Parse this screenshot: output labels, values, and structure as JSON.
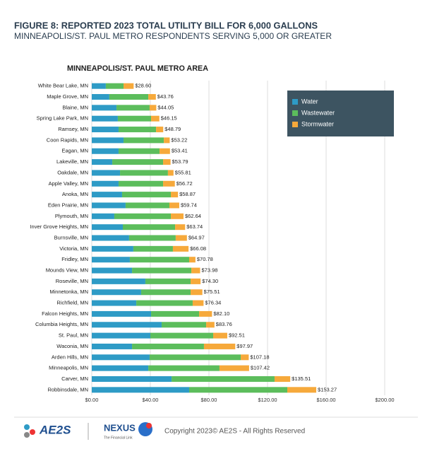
{
  "header": {
    "title": "FIGURE 8: REPORTED 2023 TOTAL UTILITY BILL FOR 6,000 GALLONS",
    "subtitle": "MINNEAPOLIS/ST. PAUL METRO RESPONDENTS SERVING 5,000 OR GREATER"
  },
  "chart_data": {
    "type": "stacked-barh",
    "title": "MINNEAPOLIS/ST. PAUL METRO AREA",
    "categories": [
      "White Bear Lake, MN",
      "Maple Grove, MN",
      "Blaine, MN",
      "Spring Lake Park, MN",
      "Ramsey, MN",
      "Coon Rapids, MN",
      "Eagan, MN",
      "Lakeville, MN",
      "Oakdale, MN",
      "Apple Valley, MN",
      "Anoka, MN",
      "Eden Prairie, MN",
      "Plymouth, MN",
      "Inver Grove Heights, MN",
      "Burnsville, MN",
      "Victoria, MN",
      "Fridley, MN",
      "Mounds View, MN",
      "Roseville, MN",
      "Minnetonka, MN",
      "Richfield, MN",
      "Falcon Heights, MN",
      "Columbia Heights, MN",
      "St. Paul, MN",
      "Waconia, MN",
      "Arden Hills, MN",
      "Minneapolis, MN",
      "Carver, MN",
      "Robbinsdale, MN"
    ],
    "series": [
      {
        "name": "Water",
        "color": "#2e9bc6",
        "values": [
          9.6,
          12,
          16.9,
          17.8,
          18.3,
          21.7,
          18.3,
          14,
          19.3,
          18.3,
          20.7,
          23.1,
          15.4,
          21.2,
          25.5,
          28.4,
          26,
          27.5,
          36.6,
          33.7,
          30.4,
          40.5,
          47.7,
          40,
          27.5,
          39.5,
          38.6,
          54.5,
          66.5
        ]
      },
      {
        "name": "Wastewater",
        "color": "#5cbd5c",
        "values": [
          12.1,
          26.6,
          22.6,
          22.7,
          25.6,
          27.5,
          28,
          34.7,
          32.7,
          30.4,
          33.3,
          29.9,
          38.6,
          35.7,
          31.8,
          27,
          40.5,
          40.5,
          30.9,
          33.8,
          38.5,
          32.8,
          30.4,
          42.9,
          49.1,
          62.2,
          48.6,
          70.3,
          67
        ]
      },
      {
        "name": "Stormwater",
        "color": "#f6a93b",
        "values": [
          6.9,
          5.16,
          4.55,
          5.65,
          4.89,
          4.02,
          7.11,
          5.09,
          3.81,
          8.02,
          4.87,
          6.74,
          8.64,
          6.84,
          7.67,
          10.68,
          4.28,
          5.98,
          6.8,
          8.01,
          7.44,
          8.8,
          5.66,
          9.61,
          21.37,
          5.48,
          20.22,
          10.71,
          19.77
        ]
      }
    ],
    "totals": [
      28.6,
      43.76,
      44.05,
      46.15,
      48.79,
      53.22,
      53.41,
      53.79,
      55.81,
      56.72,
      58.87,
      59.74,
      62.64,
      63.74,
      64.97,
      66.08,
      70.78,
      73.98,
      74.3,
      75.51,
      76.34,
      82.1,
      83.76,
      92.51,
      97.97,
      107.18,
      107.42,
      135.51,
      153.27
    ],
    "total_labels": [
      "$28.60",
      "$43.76",
      "$44.05",
      "$46.15",
      "$48.79",
      "$53.22",
      "$53.41",
      "$53.79",
      "$55.81",
      "$56.72",
      "$58.87",
      "$59.74",
      "$62.64",
      "$63.74",
      "$64.97",
      "$66.08",
      "$70.78",
      "$73.98",
      "$74.30",
      "$75.51",
      "$76.34",
      "$82.10",
      "$83.76",
      "$92.51",
      "$97.97",
      "$107.18",
      "$107.42",
      "$135.51",
      "$153.27"
    ],
    "xlim": [
      0,
      200
    ],
    "xticks": [
      {
        "value": 0,
        "label": "$0.00"
      },
      {
        "value": 40,
        "label": "$40.00"
      },
      {
        "value": 80,
        "label": "$80.00"
      },
      {
        "value": 120,
        "label": "$120.00"
      },
      {
        "value": 160,
        "label": "$160.00"
      },
      {
        "value": 200,
        "label": "$200.00"
      }
    ],
    "grid": true,
    "legend": "upper right"
  },
  "footer": {
    "brand": "AE2S",
    "nexus": "NEXUS",
    "tagline": "The Financial Link",
    "copyright": "Copyright 2023© AE2S - All Rights Reserved"
  }
}
